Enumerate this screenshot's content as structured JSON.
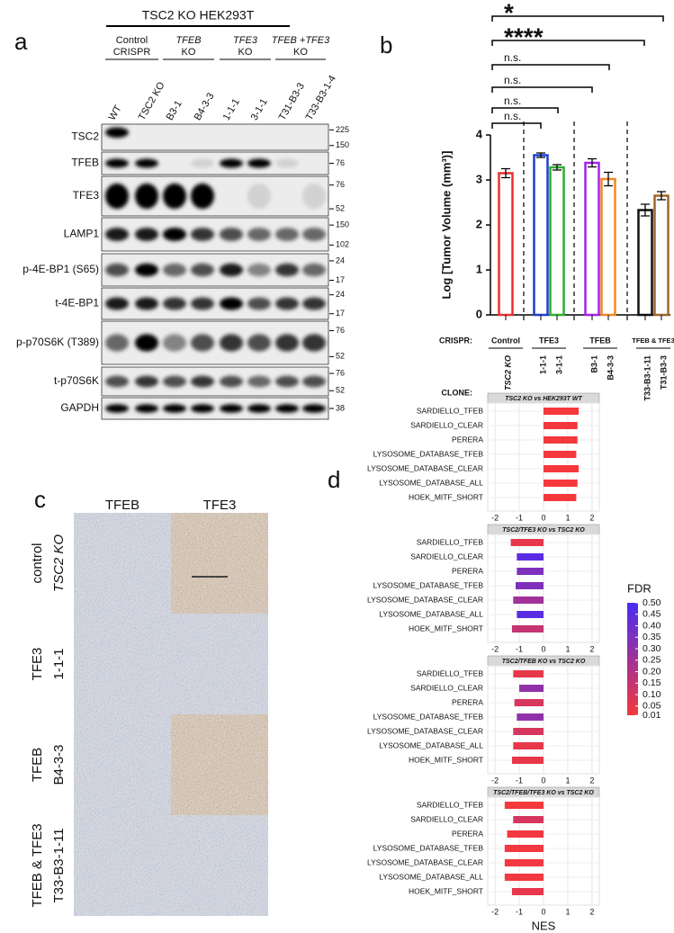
{
  "panel_labels": [
    "a",
    "b",
    "c",
    "d"
  ],
  "blot": {
    "header": "TSC2 KO HEK293T",
    "groups": [
      [
        "Control",
        "CRISPR"
      ],
      [
        "TFEB",
        "KO"
      ],
      [
        "TFE3",
        "KO"
      ],
      [
        "TFEB +TFE3",
        "KO"
      ]
    ],
    "lanes": [
      "WT",
      "TSC2 KO",
      "B3-1",
      "B4-3-3",
      "1-1-1",
      "3-1-1",
      "T31-B3-3",
      "T33-B3-1-4"
    ],
    "rows": [
      {
        "label": "TSC2",
        "markers": [
          225,
          150
        ]
      },
      {
        "label": "TFEB",
        "markers": [
          76
        ]
      },
      {
        "label": "TFE3",
        "markers": [
          76,
          52
        ]
      },
      {
        "label": "LAMP1",
        "markers": [
          150,
          102
        ]
      },
      {
        "label": "p-4E-BP1 (S65)",
        "markers": [
          24,
          17
        ]
      },
      {
        "label": "t-4E-BP1",
        "markers": [
          24,
          17
        ]
      },
      {
        "label": "p-p70S6K (T389)",
        "markers": [
          76,
          52
        ]
      },
      {
        "label": "t-p70S6K",
        "markers": [
          76,
          52
        ]
      },
      {
        "label": "GAPDH",
        "markers": [
          38
        ]
      }
    ]
  },
  "ihc": {
    "columns": [
      "TFEB",
      "TFE3"
    ],
    "rows": [
      [
        "control",
        "TSC2 KO"
      ],
      [
        "TFE3",
        "1-1-1"
      ],
      [
        "TFEB",
        "B4-3-3"
      ],
      [
        "TFEB & TFE3",
        "T33-B3-1-11"
      ]
    ]
  },
  "chart_data": [
    {
      "type": "bar",
      "ylabel": "Log [Tumor Volume (mm³)]",
      "ylim": [
        0,
        4
      ],
      "yticks": [
        0,
        1,
        2,
        3,
        4
      ],
      "crispr_label": "CRISPR:",
      "clone_label": "CLONE:",
      "comparisons": [
        "*",
        "****",
        "n.s.",
        "n.s.",
        "n.s.",
        "n.s."
      ],
      "groups": [
        {
          "name": "Control",
          "categories": [
            "TSC2 KO"
          ],
          "values": [
            3.15
          ],
          "errors": [
            0.1
          ],
          "colors": [
            "#e8312f"
          ]
        },
        {
          "name": "TFE3",
          "categories": [
            "1-1-1",
            "3-1-1"
          ],
          "values": [
            3.55,
            3.28
          ],
          "errors": [
            0.05,
            0.06
          ],
          "colors": [
            "#1f3fd0",
            "#2eae2e"
          ]
        },
        {
          "name": "TFEB",
          "categories": [
            "B3-1",
            "B4-3-3"
          ],
          "values": [
            3.38,
            3.02
          ],
          "errors": [
            0.09,
            0.15
          ],
          "colors": [
            "#a224ee",
            "#f08a24"
          ]
        },
        {
          "name": "TFEB & TFE3",
          "categories": [
            "T33-B3-1-11",
            "T31-B3-3"
          ],
          "values": [
            2.33,
            2.65
          ],
          "errors": [
            0.13,
            0.09
          ],
          "colors": [
            "#111111",
            "#a0652a"
          ]
        }
      ]
    },
    {
      "type": "barh",
      "title": "TSC2 KO vs HEK293T WT",
      "categories": [
        "SARDIELLO_TFEB",
        "SARDIELLO_CLEAR",
        "PERERA",
        "LYSOSOME_DATABASE_TFEB",
        "LYSOSOME_DATABASE_CLEAR",
        "LYSOSOME_DATABASE_ALL",
        "HOEK_MITF_SHORT"
      ],
      "values": [
        1.45,
        1.4,
        1.4,
        1.35,
        1.45,
        1.4,
        1.35
      ],
      "fdr": [
        0.01,
        0.01,
        0.01,
        0.01,
        0.01,
        0.01,
        0.01
      ],
      "xlim": [
        -2.3,
        2.3
      ],
      "xticks": [
        -2,
        -1,
        0,
        1,
        2
      ],
      "grid": true
    },
    {
      "type": "barh",
      "title": "TSC2/TFE3 KO vs TSC2 KO",
      "categories": [
        "SARDIELLO_TFEB",
        "SARDIELLO_CLEAR",
        "PERERA",
        "LYSOSOME_DATABASE_TFEB",
        "LYSOSOME_DATABASE_CLEAR",
        "LYSOSOME_DATABASE_ALL",
        "HOEK_MITF_SHORT"
      ],
      "values": [
        -1.35,
        -1.1,
        -1.1,
        -1.15,
        -1.25,
        -1.1,
        -1.3
      ],
      "fdr": [
        0.05,
        0.45,
        0.35,
        0.35,
        0.25,
        0.45,
        0.15
      ],
      "xlim": [
        -2.3,
        2.3
      ],
      "xticks": [
        -2,
        -1,
        0,
        1,
        2
      ],
      "grid": true
    },
    {
      "type": "barh",
      "title": "TSC2/TFEB KO vs TSC2 KO",
      "categories": [
        "SARDIELLO_TFEB",
        "SARDIELLO_CLEAR",
        "PERERA",
        "LYSOSOME_DATABASE_TFEB",
        "LYSOSOME_DATABASE_CLEAR",
        "LYSOSOME_DATABASE_ALL",
        "HOEK_MITF_SHORT"
      ],
      "values": [
        -1.25,
        -1.0,
        -1.2,
        -1.1,
        -1.25,
        -1.25,
        -1.3
      ],
      "fdr": [
        0.05,
        0.3,
        0.1,
        0.3,
        0.1,
        0.05,
        0.05
      ],
      "xlim": [
        -2.3,
        2.3
      ],
      "xticks": [
        -2,
        -1,
        0,
        1,
        2
      ],
      "grid": true
    },
    {
      "type": "barh",
      "title": "TSC2/TFEB/TFE3 KO vs TSC2 KO",
      "categories": [
        "SARDIELLO_TFEB",
        "SARDIELLO_CLEAR",
        "PERERA",
        "LYSOSOME_DATABASE_TFEB",
        "LYSOSOME_DATABASE_CLEAR",
        "LYSOSOME_DATABASE_ALL",
        "HOEK_MITF_SHORT"
      ],
      "values": [
        -1.6,
        -1.25,
        -1.5,
        -1.6,
        -1.6,
        -1.6,
        -1.3
      ],
      "fdr": [
        0.01,
        0.1,
        0.02,
        0.02,
        0.02,
        0.02,
        0.05
      ],
      "xlim": [
        -2.3,
        2.3
      ],
      "xticks": [
        -2,
        -1,
        0,
        1,
        2
      ],
      "grid": true,
      "xlabel": "NES"
    }
  ],
  "fdr_colorbar": {
    "title": "FDR",
    "lim": [
      0.01,
      0.5
    ],
    "colors": [
      "#f5383c",
      "#4a2cf5"
    ],
    "ticks": [
      {
        "value": 0.5,
        "label": "0.50"
      },
      0.45,
      {
        "value": 0.4,
        "label": "0.40"
      },
      0.35,
      {
        "value": 0.3,
        "label": "0.30"
      },
      0.25,
      {
        "value": 0.2,
        "label": "0.20"
      },
      0.15,
      {
        "value": 0.1,
        "label": "0.10"
      },
      0.05,
      0.01
    ]
  }
}
